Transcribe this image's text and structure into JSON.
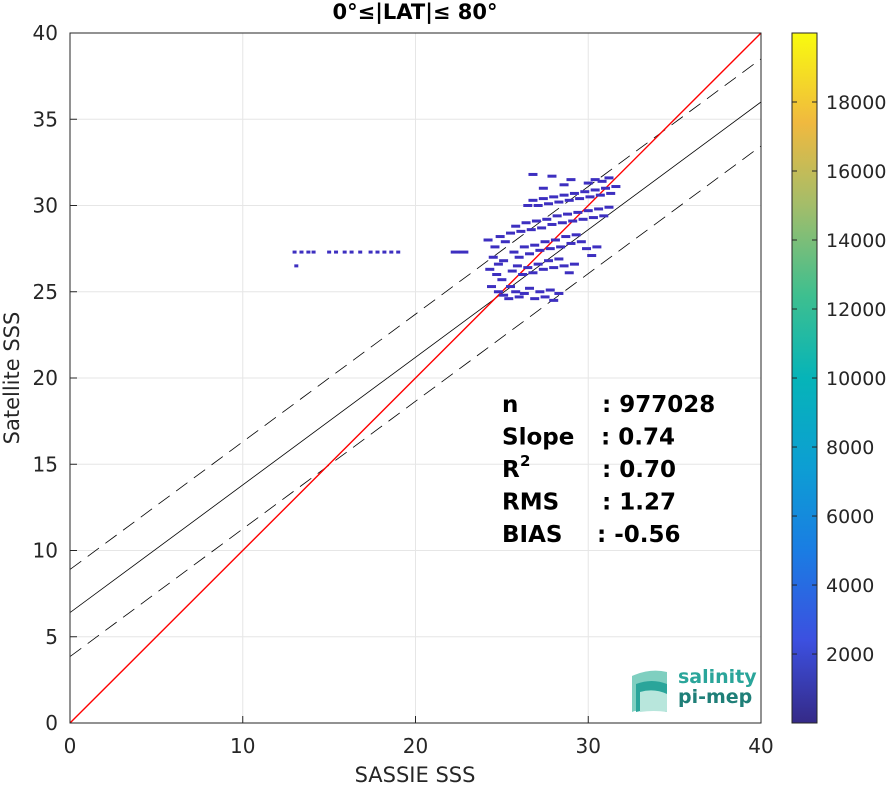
{
  "chart_data": {
    "type": "scatter",
    "title": "0°≤|LAT|≤ 80°",
    "xlabel": "SASSIE SSS",
    "ylabel": "Satellite SSS",
    "xlim": [
      0,
      40
    ],
    "ylim": [
      0,
      40
    ],
    "xticks": [
      0,
      10,
      20,
      30,
      40
    ],
    "yticks": [
      0,
      5,
      10,
      15,
      20,
      25,
      30,
      35,
      40
    ],
    "grid": true,
    "one_to_one_line": {
      "from": [
        0,
        0
      ],
      "to": [
        40,
        40
      ],
      "color": "#ff0000"
    },
    "regression": {
      "slope": 0.74,
      "intercept": 6.4,
      "color": "#000000"
    },
    "regression_bounds": [
      {
        "slope": 0.74,
        "intercept": 8.9,
        "style": "dashed"
      },
      {
        "slope": 0.74,
        "intercept": 3.85,
        "style": "dashed"
      }
    ],
    "density_points": [
      [
        13.0,
        27.3
      ],
      [
        13.4,
        27.3
      ],
      [
        13.8,
        27.3
      ],
      [
        14.1,
        27.3
      ],
      [
        15.0,
        27.3
      ],
      [
        15.4,
        27.3
      ],
      [
        15.9,
        27.3
      ],
      [
        16.3,
        27.3
      ],
      [
        16.8,
        27.3
      ],
      [
        17.4,
        27.3
      ],
      [
        17.8,
        27.3
      ],
      [
        18.2,
        27.3
      ],
      [
        18.6,
        27.3
      ],
      [
        19.0,
        27.3
      ],
      [
        13.1,
        26.5
      ],
      [
        22.3,
        27.3
      ],
      [
        22.8,
        27.3
      ],
      [
        24.2,
        28.0
      ],
      [
        24.6,
        27.6
      ],
      [
        24.9,
        28.2
      ],
      [
        25.2,
        27.9
      ],
      [
        24.5,
        27.0
      ],
      [
        24.8,
        26.6
      ],
      [
        25.1,
        26.8
      ],
      [
        24.3,
        26.3
      ],
      [
        24.7,
        26.0
      ],
      [
        25.0,
        25.7
      ],
      [
        24.4,
        25.3
      ],
      [
        24.8,
        25.0
      ],
      [
        25.1,
        24.8
      ],
      [
        25.4,
        24.6
      ],
      [
        25.5,
        25.3
      ],
      [
        25.8,
        25.0
      ],
      [
        26.0,
        24.7
      ],
      [
        26.3,
        24.9
      ],
      [
        26.6,
        25.2
      ],
      [
        26.9,
        24.6
      ],
      [
        27.2,
        25.0
      ],
      [
        27.5,
        24.7
      ],
      [
        27.8,
        25.1
      ],
      [
        28.0,
        24.5
      ],
      [
        28.3,
        24.9
      ],
      [
        25.6,
        26.2
      ],
      [
        25.9,
        26.5
      ],
      [
        26.2,
        26.0
      ],
      [
        26.5,
        26.4
      ],
      [
        26.8,
        26.1
      ],
      [
        27.1,
        26.6
      ],
      [
        27.4,
        26.3
      ],
      [
        27.7,
        26.8
      ],
      [
        28.0,
        26.4
      ],
      [
        28.3,
        26.9
      ],
      [
        28.6,
        26.5
      ],
      [
        28.9,
        26.1
      ],
      [
        29.2,
        26.6
      ],
      [
        25.7,
        27.3
      ],
      [
        26.0,
        27.0
      ],
      [
        26.3,
        27.6
      ],
      [
        26.6,
        27.2
      ],
      [
        26.9,
        27.7
      ],
      [
        27.2,
        27.4
      ],
      [
        27.5,
        27.9
      ],
      [
        27.8,
        27.5
      ],
      [
        28.1,
        28.0
      ],
      [
        28.4,
        27.6
      ],
      [
        28.7,
        28.2
      ],
      [
        29.0,
        27.8
      ],
      [
        29.3,
        28.3
      ],
      [
        29.6,
        27.9
      ],
      [
        29.9,
        27.5
      ],
      [
        30.2,
        27.1
      ],
      [
        30.5,
        27.6
      ],
      [
        25.5,
        28.4
      ],
      [
        25.8,
        28.8
      ],
      [
        26.1,
        28.5
      ],
      [
        26.4,
        29.0
      ],
      [
        26.7,
        28.6
      ],
      [
        27.0,
        29.1
      ],
      [
        27.3,
        28.7
      ],
      [
        27.6,
        29.2
      ],
      [
        27.9,
        28.9
      ],
      [
        28.2,
        29.4
      ],
      [
        28.5,
        29.0
      ],
      [
        28.8,
        29.5
      ],
      [
        29.1,
        29.1
      ],
      [
        29.4,
        29.6
      ],
      [
        29.7,
        29.2
      ],
      [
        30.0,
        29.7
      ],
      [
        30.3,
        29.3
      ],
      [
        30.6,
        29.8
      ],
      [
        30.9,
        29.4
      ],
      [
        31.2,
        29.9
      ],
      [
        26.5,
        30.0
      ],
      [
        26.8,
        30.3
      ],
      [
        27.1,
        30.0
      ],
      [
        27.4,
        30.4
      ],
      [
        27.7,
        30.1
      ],
      [
        28.0,
        30.5
      ],
      [
        28.3,
        30.2
      ],
      [
        28.6,
        30.6
      ],
      [
        28.9,
        30.3
      ],
      [
        29.2,
        30.7
      ],
      [
        29.5,
        30.4
      ],
      [
        29.8,
        30.8
      ],
      [
        30.1,
        30.5
      ],
      [
        30.4,
        30.9
      ],
      [
        30.7,
        30.6
      ],
      [
        31.0,
        31.0
      ],
      [
        31.3,
        30.7
      ],
      [
        31.6,
        31.1
      ],
      [
        26.8,
        31.8
      ],
      [
        28.6,
        31.2
      ],
      [
        29.0,
        31.5
      ],
      [
        30.0,
        31.3
      ],
      [
        30.4,
        31.5
      ],
      [
        30.8,
        31.4
      ],
      [
        31.2,
        31.6
      ],
      [
        27.9,
        31.7
      ],
      [
        27.4,
        31.0
      ]
    ],
    "colorbar": {
      "ticks": [
        2000,
        4000,
        6000,
        8000,
        10000,
        12000,
        14000,
        16000,
        18000
      ],
      "range": [
        1,
        20000
      ],
      "colormap": "parula"
    },
    "stats": [
      {
        "label": "n",
        "value": ": 977028",
        "sup": ""
      },
      {
        "label": "Slope",
        "value": ": 0.74",
        "sup": ""
      },
      {
        "label": "R",
        "value": ": 0.70",
        "sup": "2"
      },
      {
        "label": "RMS",
        "value": ": 1.27",
        "sup": ""
      },
      {
        "label": "BIAS",
        "value": ": -0.56",
        "sup": ""
      }
    ]
  },
  "logo": {
    "line1": "salinity",
    "line2": "pi-mep"
  },
  "colors": {
    "point": "#3d2fc0",
    "one_to_one": "#ff0000",
    "grid": "#e6e6e6"
  }
}
